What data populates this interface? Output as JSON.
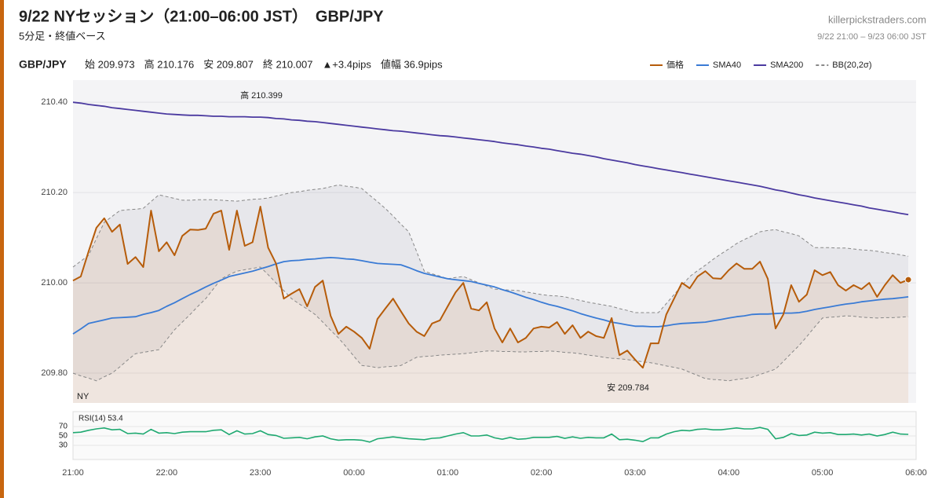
{
  "chart_data": {
    "type": "line",
    "title": "9/22 NYセッション（21:00–06:00 JST）　GBP/JPY",
    "subtitle": "5分足・終値ベース",
    "source": "killerpickstraders.com",
    "period": "9/22 21:00 – 9/23 06:00 JST",
    "symbol": "GBP/JPY",
    "stats": [
      "始 209.973",
      "高 210.176",
      "安 209.807",
      "終 210.007",
      "▲+3.4pips",
      "値幅 36.9pips"
    ],
    "legend": "top-right",
    "grid": true,
    "annotations": [
      "高 210.399",
      "安 209.784",
      "NY"
    ],
    "categories": [
      "21:00",
      null,
      null,
      null,
      null,
      null,
      null,
      null,
      null,
      null,
      null,
      null,
      "22:00",
      null,
      null,
      null,
      null,
      null,
      null,
      null,
      null,
      null,
      null,
      null,
      "23:00",
      null,
      null,
      null,
      null,
      null,
      null,
      null,
      null,
      null,
      null,
      null,
      "00:00",
      null,
      null,
      null,
      null,
      null,
      null,
      null,
      null,
      null,
      null,
      null,
      "01:00",
      null,
      null,
      null,
      null,
      null,
      null,
      null,
      null,
      null,
      null,
      null,
      "02:00",
      null,
      null,
      null,
      null,
      null,
      null,
      null,
      null,
      null,
      null,
      null,
      "03:00",
      null,
      null,
      null,
      null,
      null,
      null,
      null,
      null,
      null,
      null,
      null,
      "04:00",
      null,
      null,
      null,
      null,
      null,
      null,
      null,
      null,
      null,
      null,
      null,
      "05:00",
      null,
      null,
      null,
      null,
      null,
      null,
      null,
      null,
      null,
      null,
      null,
      "06:00"
    ],
    "ylim": [
      209.734,
      210.449
    ],
    "yticks": [
      {
        "value": 210.4,
        "label": "210.40"
      },
      {
        "value": 210.2,
        "label": "210.20"
      },
      {
        "value": 210,
        "label": "210.00"
      },
      {
        "value": 209.8,
        "label": "209.80"
      }
    ],
    "series": [
      {
        "name": "価格",
        "color": "#b65c0a",
        "values": [
          210.005,
          210.014,
          210.07,
          210.122,
          210.143,
          210.113,
          210.129,
          210.042,
          210.057,
          210.035,
          210.16,
          210.07,
          210.09,
          210.061,
          210.104,
          210.118,
          210.117,
          210.12,
          210.153,
          210.16,
          210.073,
          210.16,
          210.082,
          210.09,
          210.169,
          210.078,
          210.043,
          209.965,
          209.976,
          209.986,
          209.948,
          209.991,
          210.005,
          209.927,
          209.887,
          209.903,
          209.892,
          209.878,
          209.854,
          209.92,
          209.943,
          209.965,
          209.937,
          209.91,
          209.892,
          209.882,
          209.91,
          209.917,
          209.948,
          209.979,
          210.0,
          209.943,
          209.939,
          209.957,
          209.899,
          209.868,
          209.899,
          209.868,
          209.878,
          209.899,
          209.903,
          209.901,
          209.913,
          209.887,
          209.906,
          209.878,
          209.892,
          209.882,
          209.878,
          209.922,
          209.84,
          209.85,
          209.83,
          209.812,
          209.866,
          209.866,
          209.93,
          209.965,
          210.0,
          209.988,
          210.014,
          210.026,
          210.01,
          210.009,
          210.028,
          210.043,
          210.031,
          210.031,
          210.047,
          210.009,
          209.899,
          209.93,
          209.995,
          209.958,
          209.974,
          210.028,
          210.017,
          210.024,
          209.995,
          209.983,
          209.995,
          209.986,
          210.0,
          209.969,
          209.995,
          210.017,
          210.0,
          210.007,
          null
        ]
      },
      {
        "name": "SMA40",
        "color": "#3a7bd5",
        "values": [
          209.887,
          209.898,
          209.91,
          209.914,
          209.918,
          209.922,
          209.923,
          209.924,
          209.925,
          209.93,
          209.934,
          209.939,
          209.948,
          209.956,
          209.965,
          209.974,
          209.982,
          209.991,
          209.999,
          210.006,
          210.014,
          210.018,
          210.022,
          210.026,
          210.031,
          210.036,
          210.042,
          210.047,
          210.049,
          210.05,
          210.052,
          210.053,
          210.055,
          210.056,
          210.055,
          210.053,
          210.052,
          210.049,
          210.046,
          210.043,
          210.042,
          210.041,
          210.04,
          210.034,
          210.027,
          210.021,
          210.017,
          210.013,
          210.009,
          210.007,
          210.005,
          210.003,
          209.999,
          209.995,
          209.991,
          209.985,
          209.98,
          209.974,
          209.968,
          209.963,
          209.957,
          209.952,
          209.948,
          209.943,
          209.938,
          209.932,
          209.927,
          209.922,
          209.918,
          209.913,
          209.91,
          209.907,
          209.904,
          209.904,
          209.903,
          209.903,
          209.905,
          209.908,
          209.91,
          209.911,
          209.912,
          209.913,
          209.916,
          209.919,
          209.922,
          209.925,
          209.927,
          209.93,
          209.931,
          209.931,
          209.932,
          209.933,
          209.933,
          209.934,
          209.937,
          209.941,
          209.944,
          209.947,
          209.95,
          209.953,
          209.955,
          209.958,
          209.96,
          209.962,
          209.964,
          209.965,
          209.967,
          209.969,
          null
        ]
      },
      {
        "name": "SMA200",
        "color": "#4b3aa0",
        "values": [
          210.4,
          210.398,
          210.395,
          210.393,
          210.391,
          210.388,
          210.386,
          210.384,
          210.382,
          210.38,
          210.378,
          210.376,
          210.374,
          210.373,
          210.372,
          210.371,
          210.371,
          210.37,
          210.369,
          210.369,
          210.368,
          210.368,
          210.368,
          210.367,
          210.367,
          210.366,
          210.364,
          210.363,
          210.361,
          210.36,
          210.358,
          210.357,
          210.355,
          210.353,
          210.351,
          210.349,
          210.347,
          210.345,
          210.343,
          210.341,
          210.339,
          210.337,
          210.336,
          210.334,
          210.332,
          210.33,
          210.328,
          210.326,
          210.325,
          210.323,
          210.321,
          210.319,
          210.317,
          210.315,
          210.313,
          210.31,
          210.308,
          210.306,
          210.303,
          210.301,
          210.298,
          210.296,
          210.293,
          210.29,
          210.287,
          210.285,
          210.282,
          210.279,
          210.275,
          210.272,
          210.269,
          210.266,
          210.262,
          210.259,
          210.256,
          210.253,
          210.25,
          210.247,
          210.244,
          210.241,
          210.238,
          210.235,
          210.232,
          210.229,
          210.226,
          210.223,
          210.22,
          210.217,
          210.214,
          210.21,
          210.206,
          210.203,
          210.199,
          210.195,
          210.192,
          210.188,
          210.185,
          210.182,
          210.179,
          210.176,
          210.173,
          210.17,
          210.166,
          210.163,
          210.16,
          210.157,
          210.154,
          210.151,
          null
        ]
      }
    ],
    "bands": [
      {
        "name": "BB(20,2σ)",
        "color": "#888888",
        "upper": [
          210.035,
          210.048,
          210.061,
          210.098,
          210.134,
          210.147,
          210.16,
          210.162,
          210.163,
          210.165,
          210.18,
          210.195,
          210.191,
          210.187,
          210.183,
          210.183,
          210.184,
          210.184,
          210.184,
          210.183,
          210.182,
          210.181,
          210.183,
          210.185,
          210.186,
          210.188,
          210.192,
          210.196,
          210.2,
          210.202,
          210.205,
          210.207,
          210.209,
          210.213,
          210.217,
          210.214,
          210.212,
          210.209,
          210.194,
          210.18,
          210.165,
          210.148,
          210.13,
          210.113,
          210.07,
          210.026,
          210.02,
          210.015,
          210.009,
          210.012,
          210.014,
          210.007,
          210.0,
          209.993,
          209.986,
          209.985,
          209.984,
          209.983,
          209.98,
          209.977,
          209.974,
          209.972,
          209.971,
          209.969,
          209.965,
          209.961,
          209.957,
          209.954,
          209.951,
          209.948,
          209.943,
          209.939,
          209.934,
          209.934,
          209.934,
          209.934,
          209.954,
          209.974,
          209.994,
          210.014,
          210.027,
          210.039,
          210.052,
          210.064,
          210.075,
          210.087,
          210.096,
          210.104,
          210.113,
          210.116,
          210.118,
          210.113,
          210.109,
          210.104,
          210.091,
          210.078,
          210.078,
          210.078,
          210.077,
          210.077,
          210.075,
          210.073,
          210.072,
          210.07,
          210.067,
          210.065,
          210.062,
          210.059,
          null
        ],
        "lower": [
          209.8,
          209.794,
          209.789,
          209.783,
          209.792,
          209.8,
          209.814,
          209.829,
          209.843,
          209.846,
          209.849,
          209.852,
          209.874,
          209.896,
          209.913,
          209.93,
          209.948,
          209.965,
          209.987,
          210.009,
          210.018,
          210.026,
          210.029,
          210.032,
          210.035,
          210.018,
          210.0,
          209.983,
          209.965,
          209.953,
          209.942,
          209.93,
          209.913,
          209.895,
          209.878,
          209.858,
          209.837,
          209.817,
          209.815,
          209.812,
          209.814,
          209.815,
          209.817,
          209.826,
          209.835,
          209.837,
          209.838,
          209.84,
          209.841,
          209.842,
          209.843,
          209.845,
          209.847,
          209.849,
          209.849,
          209.848,
          209.848,
          209.847,
          209.847,
          209.848,
          209.848,
          209.849,
          209.848,
          209.846,
          209.845,
          209.843,
          209.84,
          209.838,
          209.835,
          209.833,
          209.832,
          209.83,
          209.828,
          209.825,
          209.823,
          209.82,
          209.816,
          209.813,
          209.809,
          209.802,
          209.795,
          209.788,
          209.786,
          209.785,
          209.783,
          209.786,
          209.788,
          209.791,
          209.797,
          209.803,
          209.809,
          209.826,
          209.844,
          209.861,
          209.881,
          209.902,
          209.922,
          209.924,
          209.925,
          209.927,
          209.926,
          209.924,
          209.923,
          209.922,
          209.923,
          209.923,
          209.924,
          209.925,
          null
        ]
      }
    ],
    "rsi": {
      "label": "RSI(14) 53.4",
      "color": "#1fa971",
      "ylim": [
        0,
        100
      ],
      "yticks": [
        70,
        50,
        30
      ],
      "values": [
        57,
        58,
        62,
        65,
        67,
        63,
        64,
        55,
        56,
        54,
        64,
        56,
        57,
        55,
        58,
        59,
        59,
        59,
        62,
        63,
        53,
        61,
        54,
        55,
        61,
        53,
        51,
        45,
        46,
        47,
        44,
        48,
        50,
        44,
        41,
        42,
        42,
        41,
        37,
        44,
        46,
        48,
        46,
        44,
        43,
        42,
        45,
        46,
        50,
        54,
        57,
        50,
        50,
        52,
        46,
        43,
        47,
        43,
        44,
        47,
        47,
        47,
        49,
        45,
        48,
        45,
        47,
        46,
        46,
        54,
        42,
        43,
        41,
        38,
        46,
        46,
        54,
        59,
        62,
        61,
        64,
        65,
        63,
        63,
        65,
        67,
        65,
        65,
        68,
        64,
        44,
        47,
        55,
        51,
        52,
        58,
        56,
        57,
        53,
        53,
        54,
        52,
        54,
        50,
        53,
        58,
        54,
        53.4,
        null
      ]
    }
  }
}
